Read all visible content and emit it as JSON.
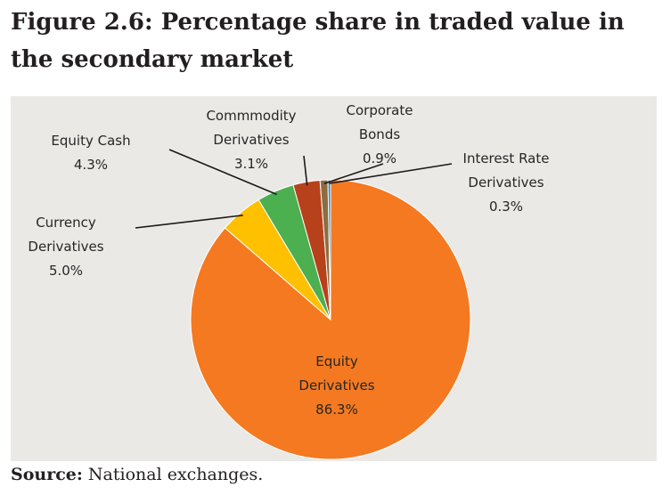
{
  "title": "Figure 2.6: Percentage share in traded value in the secondary market",
  "source": {
    "label": "Source:",
    "text": " National exchanges."
  },
  "chart_data": {
    "type": "pie",
    "title": "Figure 2.6: Percentage share in traded value in the secondary market",
    "slices": [
      {
        "name": "Equity Derivatives",
        "lines": [
          "Equity",
          "Derivatives"
        ],
        "value": 86.3,
        "label": "86.3%",
        "color": "#f47920"
      },
      {
        "name": "Currency Derivatives",
        "lines": [
          "Currency",
          "Derivatives"
        ],
        "value": 5.0,
        "label": "5.0%",
        "color": "#ffc000"
      },
      {
        "name": "Equity Cash",
        "lines": [
          "Equity Cash"
        ],
        "value": 4.3,
        "label": "4.3%",
        "color": "#4caf50"
      },
      {
        "name": "Commmodity Derivatives",
        "lines": [
          "Commmodity",
          "Derivatives"
        ],
        "value": 3.1,
        "label": "3.1%",
        "color": "#b7411b"
      },
      {
        "name": "Corporate Bonds",
        "lines": [
          "Corporate",
          "Bonds"
        ],
        "value": 0.9,
        "label": "0.9%",
        "color": "#8c6d3f"
      },
      {
        "name": "Interest Rate Derivatives",
        "lines": [
          "Interest Rate",
          "Derivatives"
        ],
        "value": 0.3,
        "label": "0.3%",
        "color": "#2e86c1"
      }
    ]
  }
}
